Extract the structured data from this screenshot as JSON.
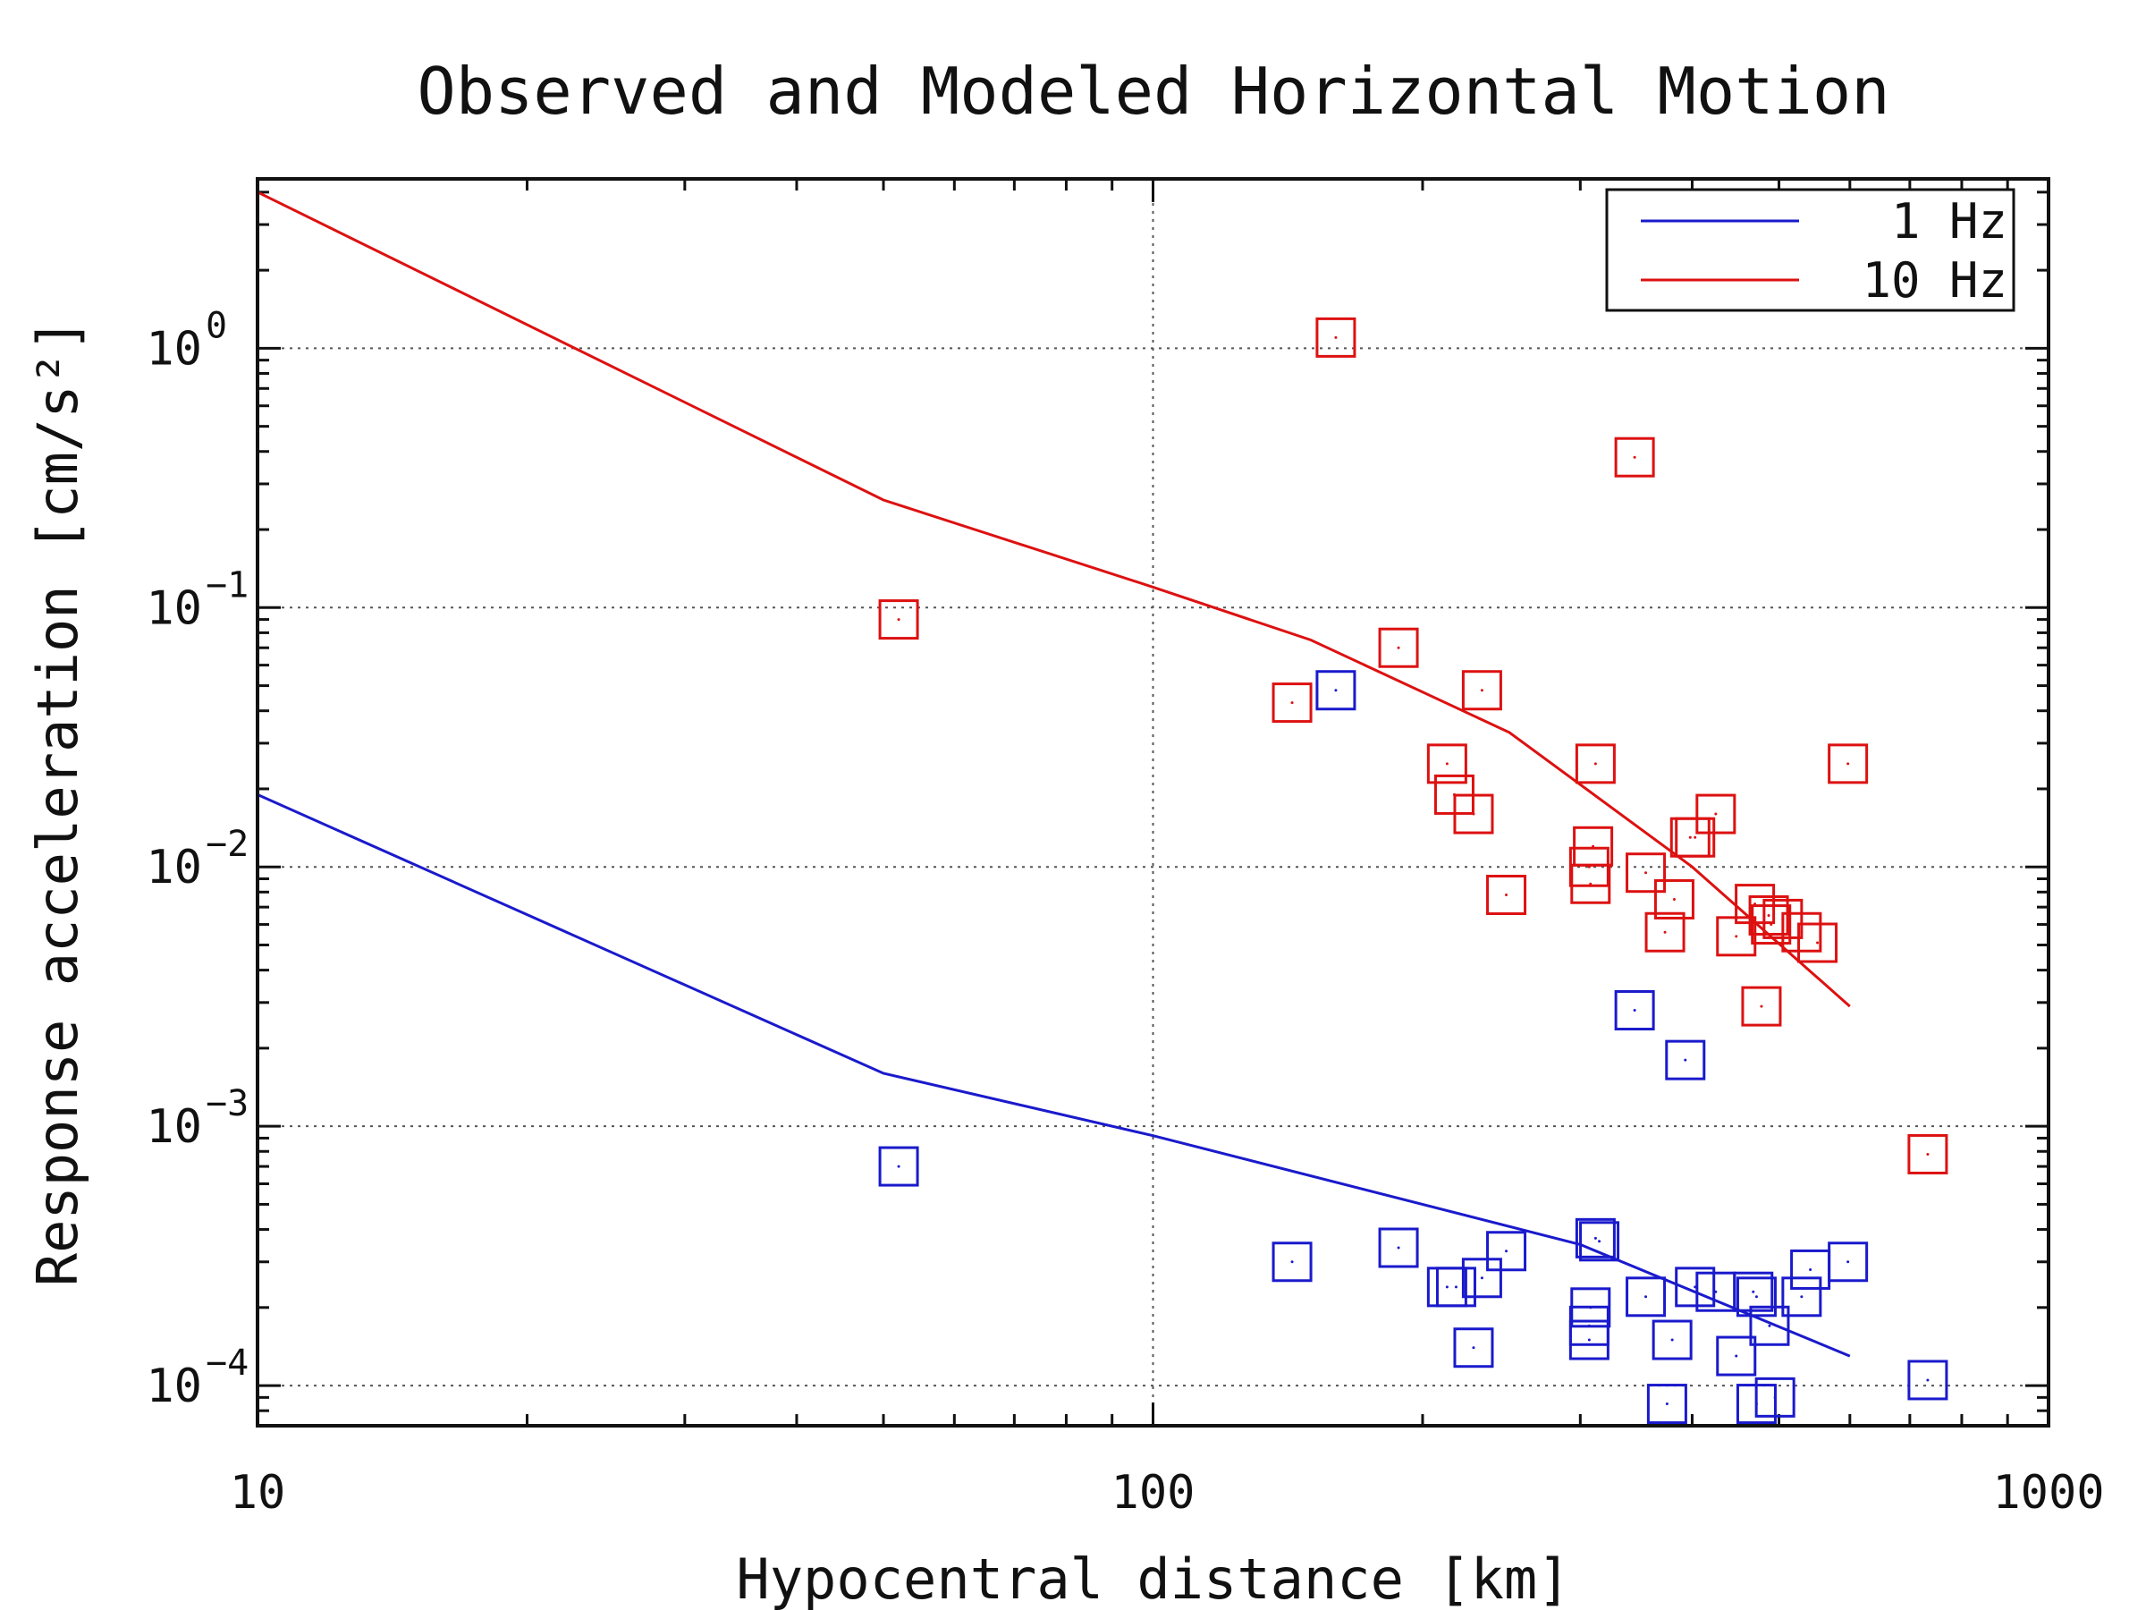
{
  "chart_data": {
    "type": "scatter",
    "title": "Observed and Modeled Horizontal Motion",
    "xlabel": "Hypocentral distance [km]",
    "ylabel": "Response acceleration [cm/s²]",
    "x_scale": "log",
    "y_scale": "log",
    "xlim": [
      10,
      1000
    ],
    "ylim": [
      7e-05,
      4.5
    ],
    "grid": true,
    "legend_position": "top-right",
    "x_ticks": [
      {
        "value": 10,
        "label": "10"
      },
      {
        "value": 100,
        "label": "100"
      },
      {
        "value": 1000,
        "label": "1000"
      }
    ],
    "y_ticks": [
      {
        "value": 1,
        "base": "10",
        "exp": "0"
      },
      {
        "value": 0.1,
        "base": "10",
        "exp": "−1"
      },
      {
        "value": 0.01,
        "base": "10",
        "exp": "−2"
      },
      {
        "value": 0.001,
        "base": "10",
        "exp": "−3"
      },
      {
        "value": 0.0001,
        "base": "10",
        "exp": "−4"
      }
    ],
    "colors": {
      "1 Hz": "#1a1acc",
      "10 Hz": "#dd1111"
    },
    "series": [
      {
        "name": "1 Hz",
        "kind": "model",
        "color": "#1a1acc",
        "points": [
          [
            10,
            0.019
          ],
          [
            50,
            0.0016
          ],
          [
            100,
            0.00092
          ],
          [
            300,
            0.00035
          ],
          [
            600,
            0.00013
          ]
        ]
      },
      {
        "name": "10 Hz",
        "kind": "model",
        "color": "#dd1111",
        "points": [
          [
            10,
            4.0
          ],
          [
            50,
            0.26
          ],
          [
            100,
            0.12
          ],
          [
            150,
            0.075
          ],
          [
            250,
            0.033
          ],
          [
            400,
            0.01
          ],
          [
            600,
            0.0029
          ]
        ]
      },
      {
        "name": "1 Hz",
        "kind": "observed",
        "color": "#1a1acc",
        "points": [
          [
            52,
            0.0007
          ],
          [
            143,
            0.0003
          ],
          [
            160,
            0.048
          ],
          [
            188,
            0.00034
          ],
          [
            213,
            0.00024
          ],
          [
            218,
            0.00024
          ],
          [
            228,
            0.00014
          ],
          [
            233,
            0.00026
          ],
          [
            248,
            0.00033
          ],
          [
            308,
            0.0002
          ],
          [
            307,
            0.00015
          ],
          [
            307,
            0.00017
          ],
          [
            312,
            0.00037
          ],
          [
            315,
            0.00036
          ],
          [
            345,
            0.0028
          ],
          [
            355,
            0.00022
          ],
          [
            375,
            8.5e-05
          ],
          [
            380,
            0.00015
          ],
          [
            393,
            0.0018
          ],
          [
            403,
            0.00024
          ],
          [
            425,
            0.00023
          ],
          [
            448,
            0.00013
          ],
          [
            468,
            0.00023
          ],
          [
            472,
            0.00022
          ],
          [
            472,
            8.5e-05
          ],
          [
            488,
            0.00017
          ],
          [
            495,
            9e-05
          ],
          [
            530,
            0.00022
          ],
          [
            542,
            0.00028
          ],
          [
            597,
            0.0003
          ],
          [
            733,
            0.000105
          ]
        ]
      },
      {
        "name": "10 Hz",
        "kind": "observed",
        "color": "#dd1111",
        "points": [
          [
            52,
            0.09
          ],
          [
            143,
            0.043
          ],
          [
            160,
            1.1
          ],
          [
            188,
            0.07
          ],
          [
            213,
            0.025
          ],
          [
            217,
            0.019
          ],
          [
            228,
            0.016
          ],
          [
            233,
            0.048
          ],
          [
            248,
            0.0078
          ],
          [
            308,
            0.0086
          ],
          [
            307,
            0.01
          ],
          [
            310,
            0.012
          ],
          [
            312,
            0.025
          ],
          [
            345,
            0.38
          ],
          [
            355,
            0.0095
          ],
          [
            373,
            0.0056
          ],
          [
            382,
            0.0075
          ],
          [
            398,
            0.013
          ],
          [
            403,
            0.013
          ],
          [
            425,
            0.016
          ],
          [
            448,
            0.0054
          ],
          [
            470,
            0.0072
          ],
          [
            478,
            0.0029
          ],
          [
            487,
            0.0065
          ],
          [
            490,
            0.006
          ],
          [
            505,
            0.0063
          ],
          [
            530,
            0.0056
          ],
          [
            552,
            0.0051
          ],
          [
            597,
            0.025
          ],
          [
            733,
            0.00078
          ]
        ]
      }
    ]
  }
}
